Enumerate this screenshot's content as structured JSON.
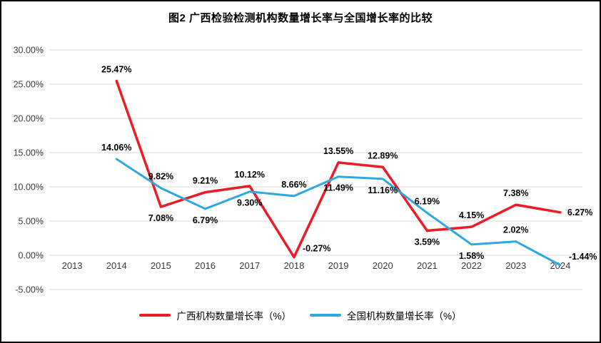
{
  "chart_data": {
    "type": "line",
    "title": "图2 广西检验检测机构数量增长率与全国增长率的比较",
    "categories": [
      "2013",
      "2014",
      "2015",
      "2016",
      "2017",
      "2018",
      "2019",
      "2020",
      "2021",
      "2022",
      "2023",
      "2024"
    ],
    "series": [
      {
        "name": "广西机构数量增长率（%）",
        "color": "#ED1C24",
        "line_width": 3.5,
        "values": [
          null,
          25.47,
          7.08,
          9.21,
          10.12,
          -0.27,
          13.55,
          12.89,
          3.59,
          4.15,
          7.38,
          6.27
        ],
        "label_positions": [
          null,
          "a",
          "b",
          "a",
          "a",
          "ar",
          "a",
          "a",
          "b",
          "a",
          "a",
          "r"
        ]
      },
      {
        "name": "全国机构数量增长率（%）",
        "color": "#2EA9DF",
        "line_width": 3,
        "values": [
          null,
          14.06,
          9.82,
          6.79,
          9.3,
          8.66,
          11.49,
          11.16,
          6.19,
          1.58,
          2.02,
          -1.44
        ],
        "label_positions": [
          null,
          "a",
          "a",
          "b",
          "b",
          "a",
          "b",
          "b",
          "a",
          "b",
          "a",
          "ar"
        ]
      }
    ],
    "ylim": [
      -5,
      30
    ],
    "ytick_step": 5,
    "ytick_format": "0.00%",
    "grid": true,
    "legend_position": "bottom",
    "gridline_color": "#D9D9D9",
    "axis_label_color": "#404040",
    "data_label_color": "#000000"
  }
}
